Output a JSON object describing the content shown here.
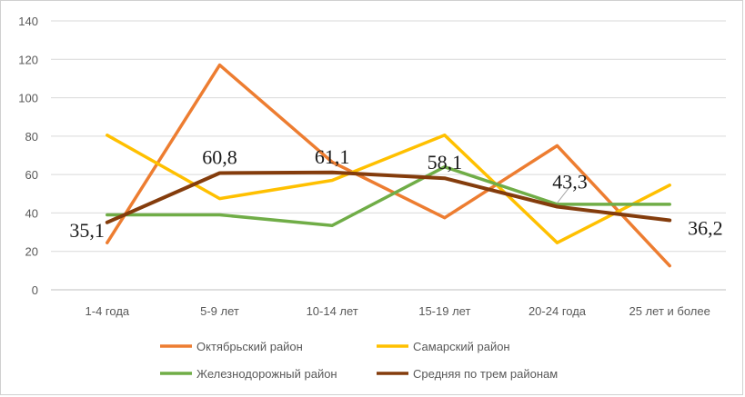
{
  "chart_data": {
    "type": "line",
    "categories": [
      "1-4 года",
      "5-9 лет",
      "10-14 лет",
      "15-19 лет",
      "20-24 года",
      "25 лет и более"
    ],
    "ylim": [
      0,
      140
    ],
    "yticks": [
      0,
      20,
      40,
      60,
      80,
      100,
      120,
      140
    ],
    "grid": true,
    "legend_position": "bottom",
    "series": [
      {
        "name": "Октябрьский район",
        "color": "#ED7D31",
        "values": [
          24.5,
          117,
          66.5,
          37.5,
          75,
          12.5
        ]
      },
      {
        "name": "Самарский район",
        "color": "#FFC000",
        "values": [
          80.5,
          47.5,
          57,
          80.5,
          24.5,
          54.5
        ]
      },
      {
        "name": "Железнодорожный район",
        "color": "#70AD47",
        "values": [
          39,
          39,
          33.5,
          64,
          44.5,
          44.5
        ]
      },
      {
        "name": "Средняя по трем районам",
        "color": "#843C0C",
        "values": [
          35.1,
          60.8,
          61.1,
          58.1,
          43.3,
          36.2
        ]
      }
    ],
    "data_labels": [
      {
        "series": 3,
        "index": 0,
        "text": "35,1"
      },
      {
        "series": 3,
        "index": 1,
        "text": "60,8"
      },
      {
        "series": 3,
        "index": 2,
        "text": "61,1"
      },
      {
        "series": 3,
        "index": 3,
        "text": "58,1"
      },
      {
        "series": 3,
        "index": 4,
        "text": "43,3"
      },
      {
        "series": 3,
        "index": 5,
        "text": "36,2"
      }
    ]
  }
}
